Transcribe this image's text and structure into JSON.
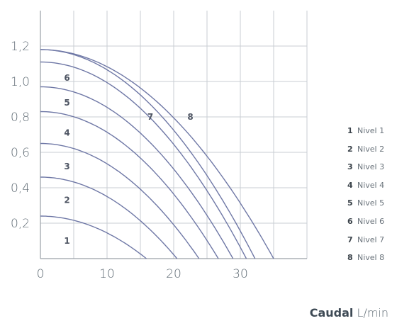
{
  "chart_data": {
    "type": "line",
    "xlabel_bold": "Caudal",
    "xlabel_unit": "L/min",
    "ylabel": "",
    "xlim": [
      0,
      40
    ],
    "ylim": [
      0,
      1.4
    ],
    "x_ticks": [
      "0",
      "10",
      "20",
      "30"
    ],
    "y_ticks": [
      "0,2",
      "0,4",
      "0,6",
      "0,8",
      "1,0",
      "1,2"
    ],
    "grid": true,
    "legend_position": "right",
    "series": [
      {
        "name": "Nivel 1",
        "label": "1",
        "max_pressure": 0.24,
        "max_flow": 15.9,
        "label_at": [
          4,
          0.1
        ]
      },
      {
        "name": "Nivel 2",
        "label": "2",
        "max_pressure": 0.46,
        "max_flow": 20.5,
        "label_at": [
          4,
          0.33
        ]
      },
      {
        "name": "Nivel 3",
        "label": "3",
        "max_pressure": 0.65,
        "max_flow": 23.8,
        "label_at": [
          4,
          0.52
        ]
      },
      {
        "name": "Nivel 4",
        "label": "4",
        "max_pressure": 0.83,
        "max_flow": 26.7,
        "label_at": [
          4,
          0.71
        ]
      },
      {
        "name": "Nivel 5",
        "label": "5",
        "max_pressure": 0.97,
        "max_flow": 28.9,
        "label_at": [
          4,
          0.88
        ]
      },
      {
        "name": "Nivel 6",
        "label": "6",
        "max_pressure": 1.11,
        "max_flow": 30.9,
        "label_at": [
          4,
          1.02
        ]
      },
      {
        "name": "Nivel 7",
        "label": "7",
        "max_pressure": 1.18,
        "max_flow": 32.2,
        "label_at": [
          16.5,
          0.8
        ]
      },
      {
        "name": "Nivel 8",
        "label": "8",
        "max_pressure": 1.18,
        "max_flow": 35.0,
        "label_at": [
          22.5,
          0.8
        ]
      }
    ]
  }
}
